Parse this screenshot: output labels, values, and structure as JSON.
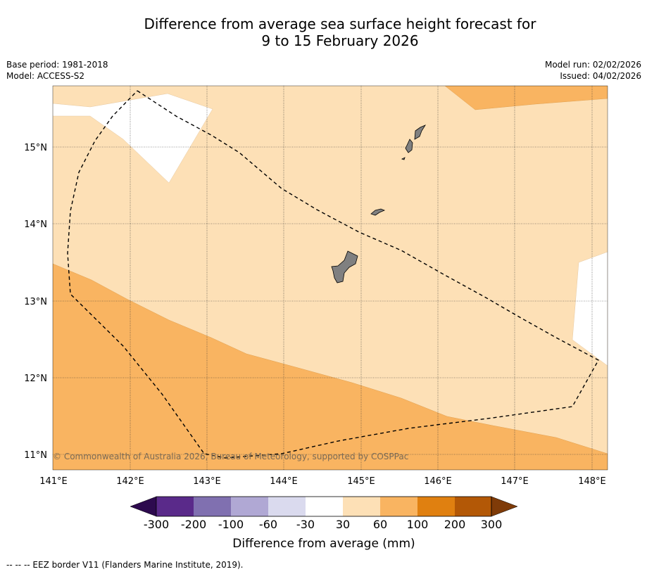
{
  "title": {
    "line1": "Difference from average sea surface height forecast for",
    "line2": "9 to 15 February 2026"
  },
  "meta": {
    "base_period": "Base period: 1981-2018",
    "model": "Model: ACCESS-S2",
    "model_run": "Model run: 02/02/2026",
    "issued": "Issued: 04/02/2026"
  },
  "map": {
    "lon_range": [
      141,
      148.2
    ],
    "lat_range": [
      10.8,
      15.8
    ],
    "lat_ticks": [
      "15°N",
      "14°N",
      "13°N",
      "12°N",
      "11°N"
    ],
    "lon_ticks": [
      "141°E",
      "142°E",
      "143°E",
      "144°E",
      "145°E",
      "146°E",
      "147°E",
      "148°E"
    ],
    "copyright": "© Commonwealth of Australia 2026, Bureau of Meteorology, supported by COSPPac",
    "land_color": "#808080"
  },
  "colorbar": {
    "title": "Difference from average (mm)",
    "labels": [
      "-300",
      "-200",
      "-100",
      "-60",
      "-30",
      "30",
      "60",
      "100",
      "200",
      "300"
    ],
    "colors": {
      "extend_low": "#2d0a4e",
      "bins": [
        "#5a2a8a",
        "#8070b0",
        "#b0a8d4",
        "#dadaee",
        "#ffffff",
        "#fde0b6",
        "#f9b461",
        "#e08010",
        "#b35806"
      ],
      "extend_high": "#7f3b08"
    }
  },
  "footer": {
    "legend": "--  --  -- EEZ border V11 (Flanders Marine Institute, 2019)."
  }
}
